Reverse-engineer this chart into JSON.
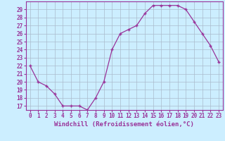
{
  "x": [
    0,
    1,
    2,
    3,
    4,
    5,
    6,
    7,
    8,
    9,
    10,
    11,
    12,
    13,
    14,
    15,
    16,
    17,
    18,
    19,
    20,
    21,
    22,
    23
  ],
  "y": [
    22,
    20,
    19.5,
    18.5,
    17,
    17,
    17,
    16.5,
    18,
    20,
    24,
    26,
    26.5,
    27,
    28.5,
    29.5,
    29.5,
    29.5,
    29.5,
    29,
    27.5,
    26,
    24.5,
    22.5
  ],
  "line_color": "#993399",
  "marker_color": "#993399",
  "bg_color": "#cceeff",
  "grid_color": "#aabbcc",
  "xlabel": "Windchill (Refroidissement éolien,°C)",
  "xlim": [
    -0.5,
    23.5
  ],
  "ylim": [
    16.5,
    30.0
  ],
  "yticks": [
    17,
    18,
    19,
    20,
    21,
    22,
    23,
    24,
    25,
    26,
    27,
    28,
    29
  ],
  "xtick_labels": [
    "0",
    "1",
    "2",
    "3",
    "4",
    "5",
    "6",
    "7",
    "8",
    "9",
    "10",
    "11",
    "12",
    "13",
    "14",
    "15",
    "16",
    "17",
    "18",
    "19",
    "20",
    "21",
    "22",
    "23"
  ],
  "tick_fontsize": 5.5,
  "xlabel_fontsize": 6.5,
  "line_width": 0.9,
  "marker_size": 3.5
}
